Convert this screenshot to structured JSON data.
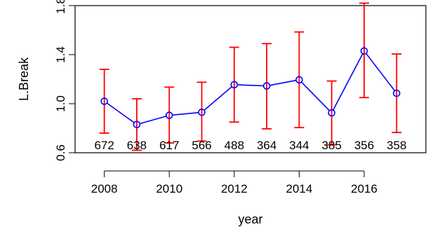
{
  "chart_data": {
    "type": "line",
    "xlabel": "year",
    "ylabel": "L.Break",
    "xlim": [
      2007.1,
      2017.9
    ],
    "ylim": [
      0.6,
      1.8
    ],
    "x_ticks": [
      2008,
      2010,
      2012,
      2014,
      2016
    ],
    "y_ticks": [
      0.6,
      1.0,
      1.4,
      1.8
    ],
    "y_tick_labels": [
      "0.6",
      "1.0",
      "1.4",
      "1.8"
    ],
    "grid": false,
    "series": [
      {
        "x": [
          2008,
          2009,
          2010,
          2011,
          2012,
          2013,
          2014,
          2015,
          2016,
          2017
        ],
        "y": [
          1.02,
          0.83,
          0.905,
          0.93,
          1.155,
          1.145,
          1.195,
          0.925,
          1.43,
          1.085
        ],
        "color": "#0000ff",
        "marker": "open-circle"
      }
    ],
    "error_bars": {
      "color": "#ff0000",
      "lower": [
        0.76,
        0.62,
        0.68,
        0.695,
        0.85,
        0.795,
        0.805,
        0.665,
        1.05,
        0.765
      ],
      "upper": [
        1.28,
        1.04,
        1.135,
        1.175,
        1.46,
        1.49,
        1.585,
        1.185,
        1.82,
        1.405
      ]
    },
    "annotations": {
      "y": 0.628,
      "labels": [
        "672",
        "638",
        "617",
        "566",
        "488",
        "364",
        "344",
        "385",
        "356",
        "358"
      ]
    }
  }
}
